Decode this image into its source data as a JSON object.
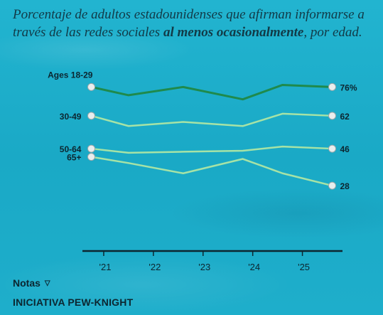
{
  "chart_data": {
    "type": "line",
    "title_parts": {
      "prefix": "Porcentaje de adultos estadounidenses que afirman informarse a través de las redes sociales ",
      "bold": "al menos ocasionalmente",
      "suffix": ", por edad."
    },
    "x": [
      2020.75,
      2021.5,
      2022.6,
      2023.8,
      2024.6,
      2025.6
    ],
    "x_ticks": [
      "'21",
      "'22",
      "'23",
      "'24",
      "'25"
    ],
    "x_tick_values": [
      2021,
      2022,
      2023,
      2024,
      2025
    ],
    "xlim": [
      2020.6,
      2025.75
    ],
    "ylim": [
      18,
      82
    ],
    "series": [
      {
        "name": "Ages 18-29",
        "values": [
          76,
          72,
          76,
          70,
          77,
          76
        ],
        "end_label": "76%",
        "color": "#1f8a4c"
      },
      {
        "name": "30-49",
        "values": [
          62,
          57,
          59,
          57,
          63,
          62
        ],
        "end_label": "62",
        "color": "#a6e3a6"
      },
      {
        "name": "50-64",
        "values": [
          46,
          44,
          44.5,
          45,
          47,
          46
        ],
        "end_label": "46",
        "color": "#a6e3a6"
      },
      {
        "name": "65+",
        "values": [
          42,
          39,
          34,
          41,
          34,
          28
        ],
        "end_label": "28",
        "color": "#a6e3a6"
      }
    ]
  },
  "notes_label": "Notas",
  "footer": "INICIATIVA PEW-KNIGHT",
  "colors": {
    "accent": "#1f8a4c",
    "line_light": "#a6e3a6",
    "text": "#0c2630"
  }
}
